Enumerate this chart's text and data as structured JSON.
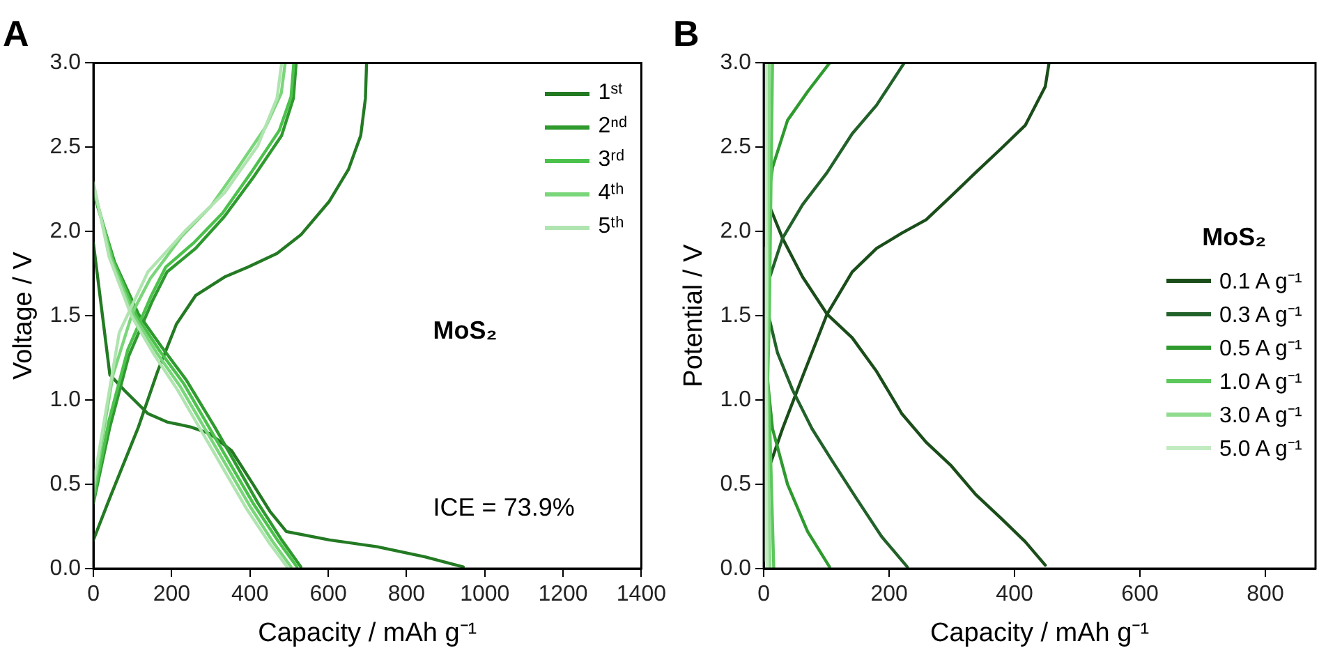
{
  "chart_data": [
    {
      "type": "line",
      "title": "A",
      "xlabel": "Capacity / mAh g⁻¹",
      "ylabel": "Voltage / V",
      "xlim": [
        0,
        1400
      ],
      "ylim": [
        0,
        3
      ],
      "xticks": [
        0,
        200,
        400,
        600,
        800,
        1000,
        1200,
        1400
      ],
      "yticks": [
        {
          "value": 0,
          "label": "0.0"
        },
        0.5,
        {
          "value": 1,
          "label": "1.0"
        },
        1.5,
        {
          "value": 2,
          "label": "2.0"
        },
        2.5,
        {
          "value": 3,
          "label": "3.0"
        }
      ],
      "grid": false,
      "legend": "top right",
      "marker": "none",
      "line_style": "solid",
      "annotations": [
        "MoS₂",
        "ICE = 73.9%"
      ],
      "series": [
        {
          "name": "1ˢᵗ",
          "color": "#237a23",
          "x": [
            0,
            42,
            78,
            139,
            188,
            249,
            298,
            353,
            408,
            451,
            493,
            603,
            725,
            847,
            945
          ],
          "values": [
            1.93,
            1.15,
            1.06,
            0.92,
            0.87,
            0.84,
            0.8,
            0.7,
            0.5,
            0.34,
            0.22,
            0.17,
            0.13,
            0.07,
            0.01
          ]
        },
        {
          "color": "#237a23",
          "x": [
            0,
            42,
            115,
            164,
            212,
            261,
            335,
            396,
            469,
            530,
            603,
            652,
            683,
            695,
            698
          ],
          "values": [
            0.17,
            0.42,
            0.84,
            1.17,
            1.45,
            1.62,
            1.73,
            1.79,
            1.87,
            1.98,
            2.18,
            2.37,
            2.57,
            2.79,
            3
          ]
        },
        {
          "name": "2ⁿᵈ",
          "color": "#2e9a2e",
          "x": [
            0,
            54,
            115,
            176,
            237,
            310,
            359,
            420,
            481,
            530
          ],
          "values": [
            2.23,
            1.82,
            1.51,
            1.31,
            1.12,
            0.84,
            0.64,
            0.39,
            0.17,
            0.01
          ]
        },
        {
          "color": "#2e9a2e",
          "x": [
            0,
            42,
            90,
            151,
            188,
            261,
            335,
            408,
            481,
            511,
            518
          ],
          "values": [
            0.39,
            0.84,
            1.26,
            1.59,
            1.76,
            1.9,
            2.09,
            2.32,
            2.57,
            2.79,
            3
          ]
        },
        {
          "name": "3ʳᵈ",
          "color": "#4cc24c",
          "x": [
            0,
            50,
            110,
            170,
            230,
            300,
            350,
            410,
            470,
            520
          ],
          "values": [
            2.25,
            1.83,
            1.5,
            1.29,
            1.1,
            0.82,
            0.62,
            0.38,
            0.17,
            0.01
          ]
        },
        {
          "color": "#4cc24c",
          "x": [
            0,
            40,
            88,
            148,
            185,
            255,
            330,
            403,
            475,
            505,
            512
          ],
          "values": [
            0.41,
            0.88,
            1.3,
            1.62,
            1.79,
            1.93,
            2.11,
            2.35,
            2.6,
            2.8,
            3
          ]
        },
        {
          "name": "4ᵗʰ",
          "color": "#7ad67a",
          "x": [
            0,
            45,
            103,
            162,
            222,
            290,
            340,
            400,
            458,
            505
          ],
          "values": [
            2.27,
            1.84,
            1.5,
            1.28,
            1.08,
            0.81,
            0.61,
            0.37,
            0.16,
            0.01
          ]
        },
        {
          "color": "#7ad67a",
          "x": [
            0,
            50,
            100,
            145,
            225,
            300,
            370,
            440,
            480,
            490
          ],
          "values": [
            0.45,
            1.15,
            1.52,
            1.72,
            1.97,
            2.15,
            2.38,
            2.62,
            2.82,
            3
          ]
        },
        {
          "name": "5ᵗʰ",
          "color": "#b0e4b0",
          "x": [
            0,
            40,
            97,
            155,
            215,
            280,
            330,
            390,
            450,
            495
          ],
          "values": [
            2.29,
            1.85,
            1.5,
            1.27,
            1.06,
            0.8,
            0.6,
            0.36,
            0.15,
            0.01
          ]
        },
        {
          "color": "#b0e4b0",
          "x": [
            0,
            66,
            139,
            237,
            335,
            420,
            469,
            481
          ],
          "values": [
            0.5,
            1.4,
            1.76,
            2.01,
            2.23,
            2.51,
            2.79,
            3
          ]
        }
      ]
    },
    {
      "type": "line",
      "title": "B",
      "xlabel": "Capacity / mAh g⁻¹",
      "ylabel": "Potential / V",
      "xlim": [
        0,
        880
      ],
      "ylim": [
        0,
        3
      ],
      "xticks": [
        0,
        200,
        400,
        600,
        800
      ],
      "yticks": [
        {
          "value": 0,
          "label": "0.0"
        },
        0.5,
        {
          "value": 1,
          "label": "1.0"
        },
        1.5,
        {
          "value": 2,
          "label": "2.0"
        },
        2.5,
        {
          "value": 3,
          "label": "3.0"
        }
      ],
      "grid": false,
      "legend": "right",
      "legend_title": "MoS₂",
      "marker": "none",
      "line_style": "solid",
      "series": [
        {
          "name": "0.1 A g⁻¹",
          "color": "#1a4d1a",
          "x": [
            6,
            30,
            62,
            101,
            141,
            180,
            220,
            259,
            299,
            338,
            378,
            417,
            449
          ],
          "values": [
            2.18,
            1.96,
            1.73,
            1.51,
            1.37,
            1.17,
            0.92,
            0.75,
            0.61,
            0.44,
            0.3,
            0.16,
            0.02
          ]
        },
        {
          "color": "#1a4d1a",
          "x": [
            2,
            30,
            62,
            101,
            141,
            180,
            220,
            259,
            299,
            338,
            378,
            417,
            449,
            455
          ],
          "values": [
            0.53,
            0.83,
            1.14,
            1.51,
            1.76,
            1.9,
            1.99,
            2.07,
            2.21,
            2.35,
            2.49,
            2.63,
            2.86,
            3
          ]
        },
        {
          "name": "0.3 A g⁻¹",
          "color": "#22622a",
          "x": [
            0,
            22,
            46,
            77,
            109,
            149,
            188,
            229
          ],
          "values": [
            1.62,
            1.28,
            1.06,
            0.83,
            0.64,
            0.41,
            0.19,
            0.01
          ]
        },
        {
          "color": "#22622a",
          "x": [
            0,
            30,
            62,
            101,
            141,
            180,
            224
          ],
          "values": [
            1.62,
            1.96,
            2.16,
            2.35,
            2.58,
            2.75,
            3
          ]
        },
        {
          "name": "0.5 A g⁻¹",
          "color": "#2e9a2e",
          "x": [
            0,
            14,
            38,
            70,
            105
          ],
          "values": [
            1.34,
            0.83,
            0.5,
            0.22,
            0.01
          ]
        },
        {
          "color": "#2e9a2e",
          "x": [
            6,
            14,
            38,
            70,
            105
          ],
          "values": [
            2.16,
            2.38,
            2.66,
            2.83,
            3
          ]
        },
        {
          "name": "1.0 A g⁻¹",
          "color": "#5cc85c",
          "x": [
            0,
            10,
            16
          ],
          "values": [
            1.7,
            0.8,
            0
          ]
        },
        {
          "color": "#5cc85c",
          "x": [
            0,
            9,
            14
          ],
          "values": [
            0.2,
            1.5,
            3
          ]
        },
        {
          "name": "3.0 A g⁻¹",
          "color": "#8fdc8f",
          "x": [
            0,
            6,
            10
          ],
          "values": [
            1.8,
            0.9,
            0
          ]
        },
        {
          "color": "#8fdc8f",
          "x": [
            0,
            6,
            9
          ],
          "values": [
            0.1,
            1.5,
            3
          ]
        },
        {
          "name": "5.0 A g⁻¹",
          "color": "#c2ebc2",
          "x": [
            3,
            4,
            5
          ],
          "values": [
            1.9,
            1,
            0
          ]
        },
        {
          "color": "#c2ebc2",
          "x": [
            2,
            3,
            4
          ],
          "values": [
            0.05,
            1.5,
            3
          ]
        }
      ]
    }
  ]
}
